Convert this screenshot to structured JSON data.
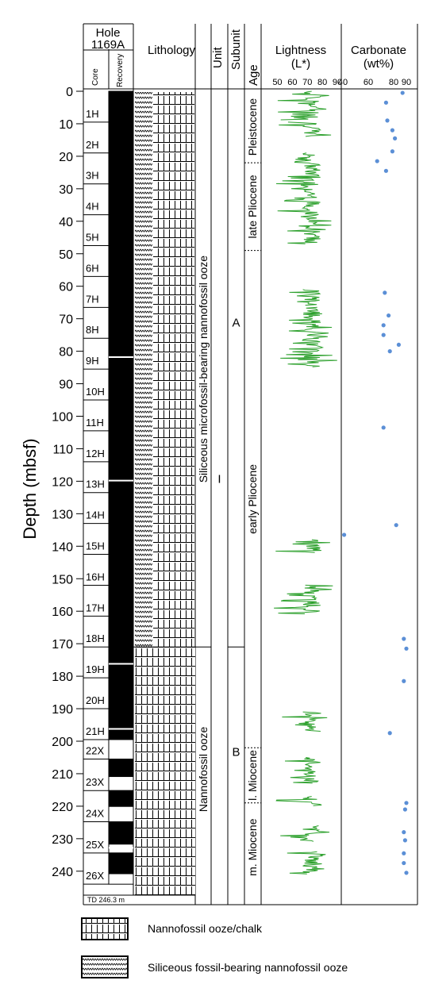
{
  "chart_data": {
    "type": "core-log",
    "header": {
      "hole_title": "Hole",
      "hole_id": "1169A",
      "core_label": "Core",
      "recovery_label": "Recovery",
      "lithology_label": "Lithology",
      "unit_label": "Unit",
      "subunit_label": "Subunit",
      "age_label": "Age",
      "lightness_label": "Lightness",
      "lightness_unit": "(L*)",
      "carbonate_label": "Carbonate",
      "carbonate_unit": "(wt%)"
    },
    "y_axis": {
      "label": "Depth (mbsf)",
      "range": [
        0,
        250
      ],
      "ticks": [
        0,
        10,
        20,
        30,
        40,
        50,
        60,
        70,
        80,
        90,
        100,
        110,
        120,
        130,
        140,
        150,
        160,
        170,
        180,
        190,
        200,
        210,
        220,
        230,
        240
      ]
    },
    "lightness_axis": {
      "range": [
        45,
        90
      ],
      "ticks": [
        50,
        60,
        70,
        80,
        90
      ]
    },
    "carbonate_axis": {
      "range": [
        40,
        90
      ],
      "ticks": [
        40,
        60,
        80,
        90
      ]
    },
    "cores": [
      {
        "name": "1H",
        "top": 0,
        "bottom": 9.5,
        "recovered": 9.5
      },
      {
        "name": "2H",
        "top": 9.5,
        "bottom": 19,
        "recovered": 9.5
      },
      {
        "name": "3H",
        "top": 19,
        "bottom": 28.5,
        "recovered": 9.5
      },
      {
        "name": "4H",
        "top": 28.5,
        "bottom": 38,
        "recovered": 9.5
      },
      {
        "name": "5H",
        "top": 38,
        "bottom": 47.5,
        "recovered": 9.5
      },
      {
        "name": "6H",
        "top": 47.5,
        "bottom": 57,
        "recovered": 9.5
      },
      {
        "name": "7H",
        "top": 57,
        "bottom": 66.5,
        "recovered": 9.5
      },
      {
        "name": "8H",
        "top": 66.5,
        "bottom": 76,
        "recovered": 9.5
      },
      {
        "name": "9H",
        "top": 76,
        "bottom": 85.5,
        "recovered": 9.5
      },
      {
        "name": "10H",
        "top": 85.5,
        "bottom": 95,
        "recovered": 9.5
      },
      {
        "name": "11H",
        "top": 95,
        "bottom": 104.5,
        "recovered": 9.5
      },
      {
        "name": "12H",
        "top": 104.5,
        "bottom": 114,
        "recovered": 9.5
      },
      {
        "name": "13H",
        "top": 114,
        "bottom": 123.5,
        "recovered": 9.5
      },
      {
        "name": "14H",
        "top": 123.5,
        "bottom": 133,
        "recovered": 9.5
      },
      {
        "name": "15H",
        "top": 133,
        "bottom": 142.5,
        "recovered": 9.5
      },
      {
        "name": "16H",
        "top": 142.5,
        "bottom": 152,
        "recovered": 9.5
      },
      {
        "name": "17H",
        "top": 152,
        "bottom": 161.5,
        "recovered": 9.5
      },
      {
        "name": "18H",
        "top": 161.5,
        "bottom": 171,
        "recovered": 9.5
      },
      {
        "name": "19H",
        "top": 171,
        "bottom": 180.5,
        "recovered": 9.5
      },
      {
        "name": "20H",
        "top": 180.5,
        "bottom": 190,
        "recovered": 9.5
      },
      {
        "name": "21H",
        "top": 190,
        "bottom": 199.5,
        "recovered": 9.5
      },
      {
        "name": "22X",
        "top": 199.5,
        "bottom": 205.5,
        "recovered": 0
      },
      {
        "name": "23X",
        "top": 205.5,
        "bottom": 215.2,
        "recovered": 5.5
      },
      {
        "name": "24X",
        "top": 215.2,
        "bottom": 224.8,
        "recovered": 5
      },
      {
        "name": "25X",
        "top": 224.8,
        "bottom": 234.4,
        "recovered": 7
      },
      {
        "name": "26X",
        "top": 234.4,
        "bottom": 244,
        "recovered": 6.5
      }
    ],
    "section_marks": [
      81.8,
      119.8,
      176.2,
      196.2,
      232.8
    ],
    "total_depth_label": "TD 246.3 m",
    "lithology_boundary": 171,
    "unit": {
      "name": "I",
      "top": 0,
      "bottom": 246.3,
      "label_depth": 119
    },
    "subunits": [
      {
        "name": "A",
        "top": 0,
        "bottom": 171,
        "label_depth": 71
      },
      {
        "name": "B",
        "top": 171,
        "bottom": 246.3,
        "label_depth": 203
      }
    ],
    "lithology_names": [
      {
        "text": "Siliceous microfossil-bearing nannofossil ooze",
        "top": 0,
        "bottom": 171
      },
      {
        "text": "Nannofossil ooze",
        "top": 171,
        "bottom": 246.3
      }
    ],
    "ages": [
      {
        "name": "Pleistocene",
        "top": 0,
        "bottom": 22
      },
      {
        "name": "late Pliocene",
        "top": 22,
        "bottom": 49
      },
      {
        "name": "early Pliocene",
        "top": 49,
        "bottom": 202
      },
      {
        "name": "l. Miocene",
        "top": 202,
        "bottom": 219
      },
      {
        "name": "m. Miocene",
        "top": 219,
        "bottom": 246.3
      }
    ],
    "lightness_intervals": [
      [
        0,
        9
      ],
      [
        9.5,
        14
      ],
      [
        19,
        47
      ],
      [
        61,
        66
      ],
      [
        66.5,
        76
      ],
      [
        76,
        85
      ],
      [
        138,
        142
      ],
      [
        152,
        161
      ],
      [
        191,
        197
      ],
      [
        205,
        213
      ],
      [
        217,
        220
      ],
      [
        226,
        231
      ],
      [
        234,
        241
      ]
    ],
    "lightness_centre": 73,
    "carbonate_points": [
      {
        "depth": 0.5,
        "value": 87
      },
      {
        "depth": 3.5,
        "value": 74
      },
      {
        "depth": 9,
        "value": 75
      },
      {
        "depth": 12,
        "value": 79
      },
      {
        "depth": 14.5,
        "value": 81
      },
      {
        "depth": 18.5,
        "value": 79
      },
      {
        "depth": 21.5,
        "value": 67
      },
      {
        "depth": 24.5,
        "value": 74
      },
      {
        "depth": 62,
        "value": 73
      },
      {
        "depth": 69,
        "value": 76
      },
      {
        "depth": 72,
        "value": 72
      },
      {
        "depth": 75,
        "value": 72
      },
      {
        "depth": 78,
        "value": 84
      },
      {
        "depth": 80,
        "value": 77
      },
      {
        "depth": 103.5,
        "value": 72
      },
      {
        "depth": 133.5,
        "value": 82
      },
      {
        "depth": 136.5,
        "value": 41
      },
      {
        "depth": 168.5,
        "value": 88
      },
      {
        "depth": 171.5,
        "value": 90
      },
      {
        "depth": 181.5,
        "value": 88
      },
      {
        "depth": 197.5,
        "value": 77
      },
      {
        "depth": 219,
        "value": 90
      },
      {
        "depth": 221,
        "value": 89
      },
      {
        "depth": 228,
        "value": 88
      },
      {
        "depth": 230.5,
        "value": 89
      },
      {
        "depth": 234.5,
        "value": 88
      },
      {
        "depth": 237.5,
        "value": 88
      },
      {
        "depth": 240.5,
        "value": 90
      }
    ],
    "colors": {
      "lightness": "#2ca02c",
      "carbonate": "#5b8fd6",
      "recovery": "#000000"
    },
    "legend": [
      {
        "symbol": "nannofossil",
        "text": "Nannofossil ooze/chalk"
      },
      {
        "symbol": "siliceous",
        "text": "Siliceous fossil-bearing nannofossil ooze"
      }
    ]
  }
}
